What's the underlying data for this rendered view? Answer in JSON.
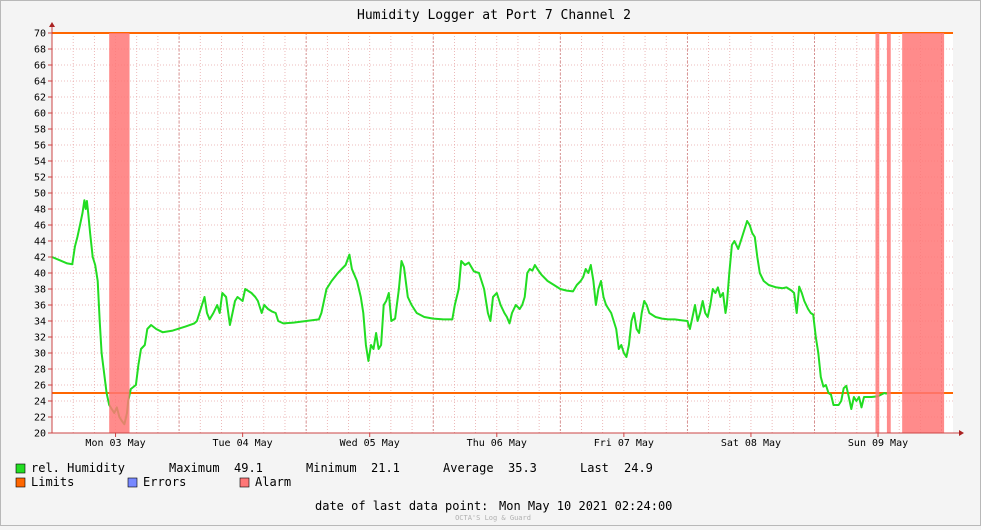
{
  "chart_data": {
    "type": "line",
    "title": "Humidity Logger at Port 7 Channel 2",
    "ylim": [
      20,
      70
    ],
    "yticks": [
      20,
      22,
      24,
      26,
      28,
      30,
      32,
      34,
      36,
      38,
      40,
      42,
      44,
      46,
      48,
      50,
      52,
      54,
      56,
      58,
      60,
      62,
      64,
      66,
      68,
      70
    ],
    "xlim": [
      0,
      7.09
    ],
    "xticks": [
      {
        "x": 0.5,
        "label": "Mon 03 May"
      },
      {
        "x": 1.5,
        "label": "Tue 04 May"
      },
      {
        "x": 2.5,
        "label": "Wed 05 May"
      },
      {
        "x": 3.5,
        "label": "Thu 06 May"
      },
      {
        "x": 4.5,
        "label": "Fri 07 May"
      },
      {
        "x": 5.5,
        "label": "Sat 08 May"
      },
      {
        "x": 6.5,
        "label": "Sun 09 May"
      }
    ],
    "grid": true,
    "limits": [
      25,
      70
    ],
    "alarm_regions": [
      [
        0.45,
        0.61
      ],
      [
        6.48,
        6.51
      ],
      [
        6.57,
        6.6
      ],
      [
        6.69,
        7.02
      ]
    ],
    "series": [
      {
        "name": "rel. Humidity",
        "color": "#22dd22",
        "points": [
          [
            0.0,
            42
          ],
          [
            0.06,
            41.6
          ],
          [
            0.12,
            41.2
          ],
          [
            0.16,
            41.1
          ],
          [
            0.18,
            43.3
          ],
          [
            0.2,
            44.5
          ],
          [
            0.22,
            46
          ],
          [
            0.24,
            47.5
          ],
          [
            0.255,
            49.1
          ],
          [
            0.265,
            48
          ],
          [
            0.275,
            49
          ],
          [
            0.285,
            47.5
          ],
          [
            0.3,
            45
          ],
          [
            0.32,
            42
          ],
          [
            0.34,
            41
          ],
          [
            0.36,
            39
          ],
          [
            0.375,
            34
          ],
          [
            0.39,
            30
          ],
          [
            0.41,
            27.5
          ],
          [
            0.43,
            25
          ],
          [
            0.45,
            23.5
          ],
          [
            0.47,
            23
          ],
          [
            0.49,
            22.5
          ],
          [
            0.51,
            23.2
          ],
          [
            0.53,
            22
          ],
          [
            0.55,
            21.5
          ],
          [
            0.57,
            21.1
          ],
          [
            0.59,
            22.5
          ],
          [
            0.6,
            24
          ],
          [
            0.62,
            25.5
          ],
          [
            0.66,
            26
          ],
          [
            0.68,
            28.5
          ],
          [
            0.7,
            30.5
          ],
          [
            0.73,
            31
          ],
          [
            0.75,
            33
          ],
          [
            0.78,
            33.5
          ],
          [
            0.82,
            33
          ],
          [
            0.87,
            32.6
          ],
          [
            0.95,
            32.8
          ],
          [
            1.05,
            33.3
          ],
          [
            1.12,
            33.7
          ],
          [
            1.14,
            34
          ],
          [
            1.17,
            35.5
          ],
          [
            1.2,
            37
          ],
          [
            1.22,
            35
          ],
          [
            1.24,
            34.2
          ],
          [
            1.27,
            35
          ],
          [
            1.3,
            36
          ],
          [
            1.32,
            35
          ],
          [
            1.34,
            37.5
          ],
          [
            1.37,
            37
          ],
          [
            1.4,
            33.5
          ],
          [
            1.42,
            35
          ],
          [
            1.44,
            36.5
          ],
          [
            1.46,
            37
          ],
          [
            1.5,
            36.5
          ],
          [
            1.52,
            38
          ],
          [
            1.57,
            37.5
          ],
          [
            1.6,
            37
          ],
          [
            1.62,
            36.5
          ],
          [
            1.65,
            35
          ],
          [
            1.67,
            36
          ],
          [
            1.7,
            35.5
          ],
          [
            1.73,
            35.2
          ],
          [
            1.76,
            35
          ],
          [
            1.78,
            34
          ],
          [
            1.82,
            33.7
          ],
          [
            1.9,
            33.8
          ],
          [
            2.0,
            34
          ],
          [
            2.1,
            34.2
          ],
          [
            2.12,
            35
          ],
          [
            2.16,
            38
          ],
          [
            2.2,
            39
          ],
          [
            2.25,
            40
          ],
          [
            2.28,
            40.5
          ],
          [
            2.31,
            41
          ],
          [
            2.34,
            42.3
          ],
          [
            2.36,
            40.5
          ],
          [
            2.4,
            39
          ],
          [
            2.43,
            37
          ],
          [
            2.45,
            35
          ],
          [
            2.47,
            31
          ],
          [
            2.49,
            29
          ],
          [
            2.51,
            31
          ],
          [
            2.53,
            30.5
          ],
          [
            2.55,
            32.5
          ],
          [
            2.57,
            30.5
          ],
          [
            2.59,
            31
          ],
          [
            2.61,
            36
          ],
          [
            2.63,
            36.5
          ],
          [
            2.65,
            37.5
          ],
          [
            2.67,
            34
          ],
          [
            2.7,
            34.3
          ],
          [
            2.73,
            38
          ],
          [
            2.75,
            41.5
          ],
          [
            2.77,
            40.7
          ],
          [
            2.8,
            37
          ],
          [
            2.83,
            36
          ],
          [
            2.87,
            35
          ],
          [
            2.93,
            34.5
          ],
          [
            3.0,
            34.3
          ],
          [
            3.08,
            34.2
          ],
          [
            3.15,
            34.2
          ],
          [
            3.17,
            36
          ],
          [
            3.2,
            38
          ],
          [
            3.22,
            41.5
          ],
          [
            3.25,
            41
          ],
          [
            3.28,
            41.3
          ],
          [
            3.32,
            40.2
          ],
          [
            3.36,
            40
          ],
          [
            3.4,
            38
          ],
          [
            3.43,
            35
          ],
          [
            3.45,
            34
          ],
          [
            3.47,
            37
          ],
          [
            3.5,
            37.5
          ],
          [
            3.53,
            36
          ],
          [
            3.56,
            35
          ],
          [
            3.58,
            34.5
          ],
          [
            3.6,
            33.7
          ],
          [
            3.62,
            35
          ],
          [
            3.65,
            36
          ],
          [
            3.68,
            35.5
          ],
          [
            3.7,
            36
          ],
          [
            3.72,
            37
          ],
          [
            3.74,
            40
          ],
          [
            3.76,
            40.5
          ],
          [
            3.78,
            40.3
          ],
          [
            3.8,
            41
          ],
          [
            3.82,
            40.5
          ],
          [
            3.85,
            39.8
          ],
          [
            3.9,
            39
          ],
          [
            3.95,
            38.5
          ],
          [
            4.0,
            38
          ],
          [
            4.05,
            37.8
          ],
          [
            4.1,
            37.7
          ],
          [
            4.13,
            38.5
          ],
          [
            4.16,
            39
          ],
          [
            4.18,
            39.5
          ],
          [
            4.2,
            40.5
          ],
          [
            4.22,
            40
          ],
          [
            4.24,
            41
          ],
          [
            4.26,
            39
          ],
          [
            4.28,
            36
          ],
          [
            4.3,
            38
          ],
          [
            4.32,
            39
          ],
          [
            4.34,
            37
          ],
          [
            4.36,
            36
          ],
          [
            4.38,
            35.5
          ],
          [
            4.4,
            35
          ],
          [
            4.42,
            34
          ],
          [
            4.44,
            33
          ],
          [
            4.46,
            30.5
          ],
          [
            4.48,
            31
          ],
          [
            4.5,
            30
          ],
          [
            4.52,
            29.5
          ],
          [
            4.54,
            31
          ],
          [
            4.56,
            34
          ],
          [
            4.58,
            35
          ],
          [
            4.6,
            33
          ],
          [
            4.62,
            32.5
          ],
          [
            4.64,
            35
          ],
          [
            4.66,
            36.5
          ],
          [
            4.68,
            36
          ],
          [
            4.7,
            35
          ],
          [
            4.75,
            34.5
          ],
          [
            4.8,
            34.3
          ],
          [
            4.85,
            34.2
          ],
          [
            4.9,
            34.2
          ],
          [
            4.95,
            34.1
          ],
          [
            5.0,
            34
          ],
          [
            5.02,
            33
          ],
          [
            5.04,
            34.5
          ],
          [
            5.06,
            36
          ],
          [
            5.08,
            34
          ],
          [
            5.1,
            35
          ],
          [
            5.12,
            36.5
          ],
          [
            5.14,
            35
          ],
          [
            5.16,
            34.5
          ],
          [
            5.18,
            36
          ],
          [
            5.2,
            38
          ],
          [
            5.22,
            37.5
          ],
          [
            5.24,
            38.2
          ],
          [
            5.26,
            37
          ],
          [
            5.28,
            37.5
          ],
          [
            5.3,
            35
          ],
          [
            5.31,
            36
          ],
          [
            5.33,
            40
          ],
          [
            5.35,
            43.5
          ],
          [
            5.37,
            44
          ],
          [
            5.4,
            43
          ],
          [
            5.42,
            44
          ],
          [
            5.45,
            45.5
          ],
          [
            5.47,
            46.5
          ],
          [
            5.49,
            46
          ],
          [
            5.51,
            45
          ],
          [
            5.53,
            44.5
          ],
          [
            5.55,
            42
          ],
          [
            5.57,
            40
          ],
          [
            5.6,
            39
          ],
          [
            5.64,
            38.5
          ],
          [
            5.7,
            38.2
          ],
          [
            5.75,
            38.1
          ],
          [
            5.78,
            38.2
          ],
          [
            5.82,
            37.8
          ],
          [
            5.84,
            37.5
          ],
          [
            5.86,
            35
          ],
          [
            5.88,
            38.3
          ],
          [
            5.9,
            37.5
          ],
          [
            5.92,
            36.5
          ],
          [
            5.95,
            35.5
          ],
          [
            5.97,
            35
          ],
          [
            5.99,
            34.8
          ],
          [
            6.01,
            32
          ],
          [
            6.03,
            30
          ],
          [
            6.05,
            27
          ],
          [
            6.07,
            25.8
          ],
          [
            6.09,
            26
          ],
          [
            6.11,
            25
          ],
          [
            6.13,
            24.8
          ],
          [
            6.15,
            23.5
          ],
          [
            6.19,
            23.5
          ],
          [
            6.21,
            24
          ],
          [
            6.23,
            25.6
          ],
          [
            6.25,
            25.9
          ],
          [
            6.27,
            24.5
          ],
          [
            6.29,
            23
          ],
          [
            6.31,
            24.5
          ],
          [
            6.33,
            24
          ],
          [
            6.35,
            24.5
          ],
          [
            6.37,
            23.2
          ],
          [
            6.39,
            24.5
          ],
          [
            6.45,
            24.5
          ],
          [
            6.5,
            24.6
          ],
          [
            6.55,
            25
          ],
          [
            6.57,
            24.9
          ]
        ]
      }
    ]
  },
  "legend": {
    "humidity_label": "rel. Humidity",
    "maximum_label": "Maximum",
    "maximum_value": "49.1",
    "minimum_label": "Minimum",
    "minimum_value": "21.1",
    "average_label": "Average",
    "average_value": "35.3",
    "last_label": "Last",
    "last_value": "24.9",
    "limits_label": "Limits",
    "errors_label": "Errors",
    "alarm_label": "Alarm"
  },
  "footer": {
    "last_point_label": "date of last data point:",
    "last_point_value": "Mon May 10 2021 02:24:00",
    "watermark": "OCTA'S Log & Guard"
  },
  "colors": {
    "humidity": "#22dd22",
    "limit": "#ff6600",
    "alarm": "#ff7777",
    "errors": "#7788ff"
  }
}
